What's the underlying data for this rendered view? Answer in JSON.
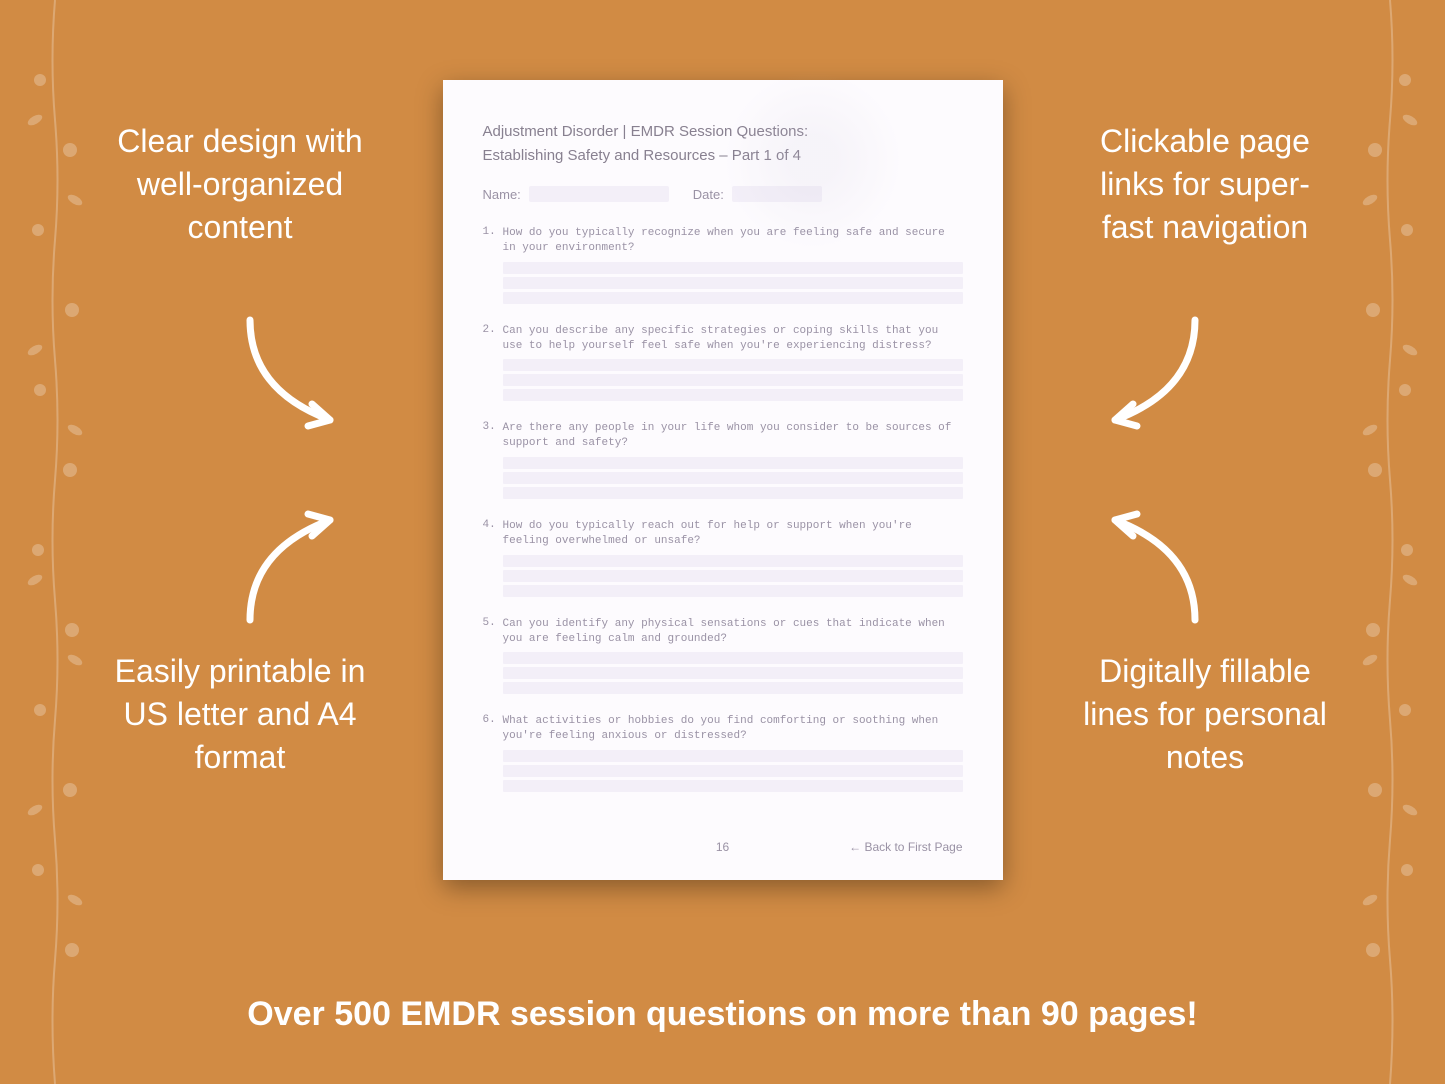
{
  "colors": {
    "background": "#d18b44",
    "callout_text": "#ffffff",
    "page_bg": "#fdfbfe",
    "field_bg": "#f3eff8",
    "muted_text": "#9a92a5",
    "title_text": "#888090"
  },
  "callouts": {
    "top_left": "Clear design with well-organized content",
    "top_right": "Clickable page links for super-fast navigation",
    "bottom_left": "Easily printable in US letter and A4 format",
    "bottom_right": "Digitally fillable lines for personal notes"
  },
  "banner": "Over 500 EMDR session questions on more than 90 pages!",
  "page": {
    "title_line1": "Adjustment Disorder | EMDR Session Questions:",
    "title_line2": "Establishing Safety and Resources – Part 1 of 4",
    "name_label": "Name:",
    "date_label": "Date:",
    "page_number": "16",
    "back_link": "← Back to First Page",
    "questions": [
      {
        "n": "1.",
        "text": "How do you typically recognize when you are feeling safe and secure in your environment?",
        "lines": 3
      },
      {
        "n": "2.",
        "text": "Can you describe any specific strategies or coping skills that you use to help yourself feel safe when you're experiencing distress?",
        "lines": 3
      },
      {
        "n": "3.",
        "text": "Are there any people in your life whom you consider to be sources of support and safety?",
        "lines": 3
      },
      {
        "n": "4.",
        "text": "How do you typically reach out for help or support when you're feeling overwhelmed or unsafe?",
        "lines": 3
      },
      {
        "n": "5.",
        "text": "Can you identify any physical sensations or cues that indicate when you are feeling calm and grounded?",
        "lines": 3
      },
      {
        "n": "6.",
        "text": "What activities or hobbies do you find comforting or soothing when you're feeling anxious or distressed?",
        "lines": 3
      }
    ]
  }
}
